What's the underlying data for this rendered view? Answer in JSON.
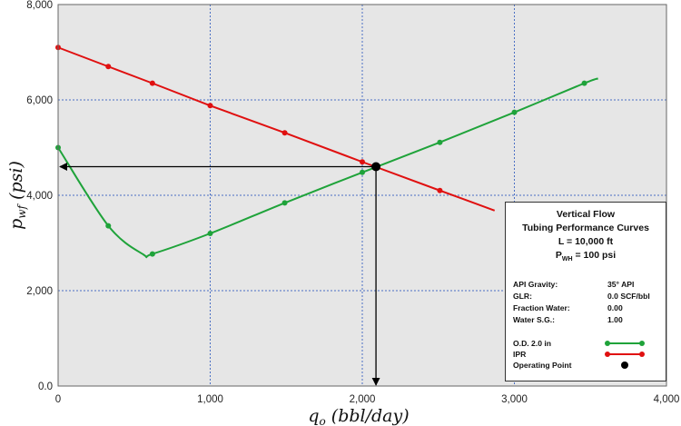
{
  "chart_data": {
    "type": "line",
    "xlabel": "q_o (bbl/day)",
    "ylabel": "p_wf (psi)",
    "xlim": [
      0,
      4000
    ],
    "ylim": [
      0,
      8000
    ],
    "x_ticks": [
      "0",
      "1,000",
      "2,000",
      "3,000",
      "4,000"
    ],
    "y_ticks": [
      "0.0",
      "2,000",
      "4,000",
      "6,000",
      "8,000"
    ],
    "grid": true,
    "background": "#e6e6e6",
    "series": [
      {
        "name": "O.D. 2.0 in",
        "color": "#1fa33a",
        "points": [
          [
            0,
            5000
          ],
          [
            330,
            3360
          ],
          [
            620,
            2770
          ],
          [
            1000,
            3200
          ],
          [
            1490,
            3840
          ],
          [
            2000,
            4480
          ],
          [
            2510,
            5110
          ],
          [
            3000,
            5740
          ],
          [
            3460,
            6350
          ]
        ],
        "line_extent": [
          0,
          3550
        ],
        "line_min_near": [
          560,
          2760
        ],
        "line_end_y": 6450
      },
      {
        "name": "IPR",
        "color": "#e01010",
        "points": [
          [
            0,
            7100
          ],
          [
            330,
            6700
          ],
          [
            620,
            6350
          ],
          [
            1000,
            5880
          ],
          [
            1490,
            5310
          ],
          [
            2000,
            4700
          ],
          [
            2510,
            4100
          ]
        ],
        "line_extent": [
          0,
          2870
        ],
        "line_end_y": 3680
      }
    ],
    "operating_point": {
      "name": "Operating Point",
      "x": 2090,
      "y": 4600,
      "color": "#000000"
    },
    "legend": {
      "position": "bottom-right",
      "title_lines": [
        "Vertical Flow",
        "Tubing Performance Curves",
        "L = 10,000 ft"
      ],
      "pwh_label_main": "P",
      "pwh_label_sub": "WH",
      "pwh_label_rest": " = 100 psi",
      "params": [
        {
          "key": "API Gravity:",
          "value": "35° API"
        },
        {
          "key": "GLR:",
          "value": "0.0 SCF/bbl"
        },
        {
          "key": "Fraction Water:",
          "value": "0.00"
        },
        {
          "key": "Water S.G.:",
          "value": "1.00"
        }
      ]
    },
    "axis_titles": {
      "x_main": "q",
      "x_sub": "o",
      "x_rest": " (bbl/day)",
      "y_main": "p",
      "y_sub": "wf",
      "y_rest": " (psi)"
    }
  }
}
